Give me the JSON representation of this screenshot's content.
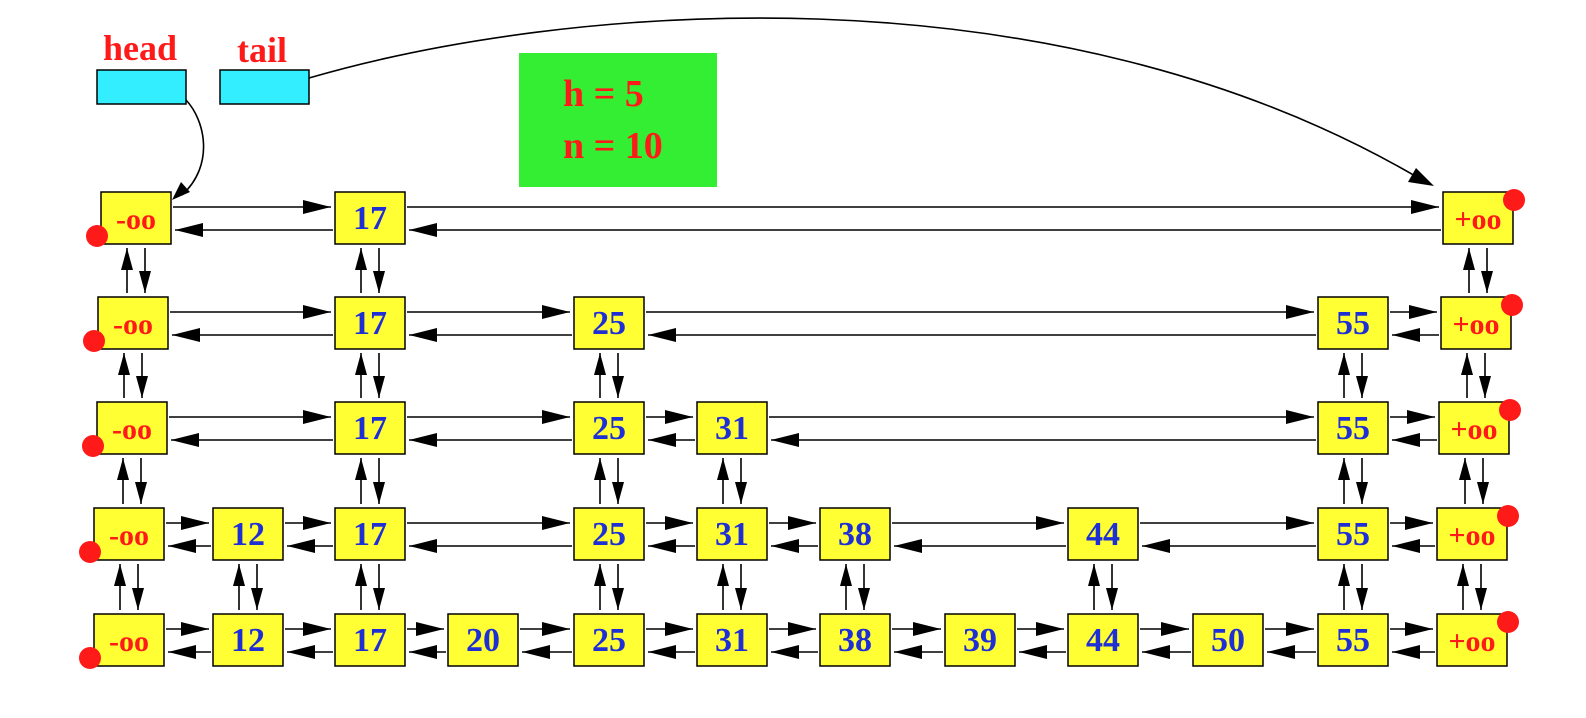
{
  "pointers": {
    "head_label": "head",
    "tail_label": "tail"
  },
  "info": {
    "height_text": "h = 5",
    "count_text": "n = 10"
  },
  "sentinels": {
    "neg_inf": "-oo",
    "pos_inf": "+oo"
  },
  "levels": [
    [
      "17"
    ],
    [
      "17",
      "25",
      "55"
    ],
    [
      "17",
      "25",
      "31",
      "55"
    ],
    [
      "12",
      "17",
      "25",
      "31",
      "38",
      "44",
      "55"
    ],
    [
      "12",
      "17",
      "20",
      "25",
      "31",
      "38",
      "39",
      "44",
      "50",
      "55"
    ]
  ],
  "colors": {
    "node_fill": "#ffff33",
    "number_text": "#1f2fd6",
    "infinity_text": "#ff1a1a",
    "pointer_fill": "#33eeff",
    "info_fill": "#33ee33",
    "marker": "#ff1a1a"
  }
}
